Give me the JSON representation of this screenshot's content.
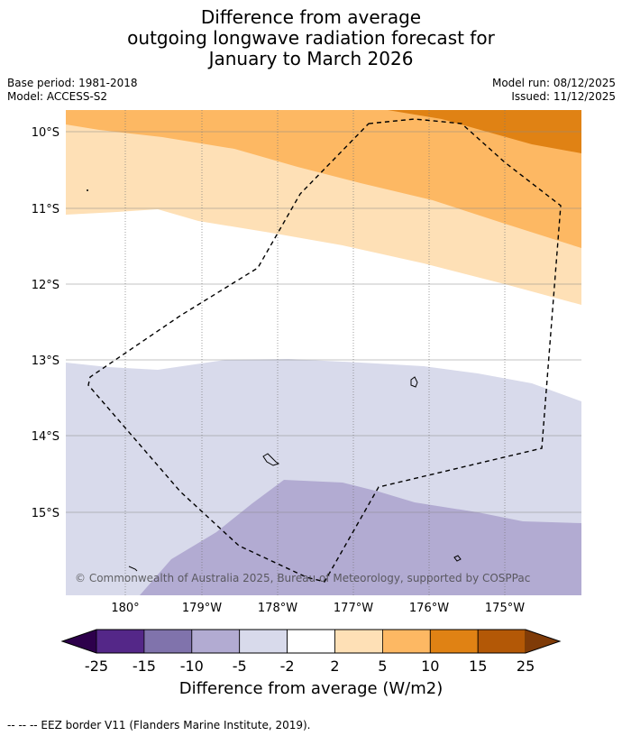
{
  "title": {
    "line1": "Difference from average",
    "line2": "outgoing longwave radiation forecast for",
    "line3": "January to March 2026"
  },
  "meta": {
    "base_period": "Base period: 1981-2018",
    "model": "Model: ACCESS-S2",
    "model_run": "Model run: 08/12/2025",
    "issued": "Issued: 11/12/2025"
  },
  "map": {
    "lat_labels": [
      "10°S",
      "11°S",
      "12°S",
      "13°S",
      "14°S",
      "15°S"
    ],
    "lon_labels": [
      "180°",
      "179°W",
      "178°W",
      "177°W",
      "176°W",
      "175°W"
    ],
    "copyright": "© Commonwealth of Australia 2025, Bureau of Meteorology, supported by COSPPac",
    "colors": {
      "orange_dark": "#e08214",
      "orange": "#fdb863",
      "orange_light": "#fee0b6",
      "purple_light": "#d8daeb",
      "purple": "#b2abd2"
    }
  },
  "colorbar": {
    "ticks": [
      "-25",
      "-15",
      "-10",
      "-5",
      "-2",
      "2",
      "5",
      "10",
      "15",
      "25"
    ],
    "colors": [
      "#2d004b",
      "#542788",
      "#8073ac",
      "#b2abd2",
      "#d8daeb",
      "#ffffff",
      "#fee0b6",
      "#fdb863",
      "#e08214",
      "#b35806",
      "#7f3b08"
    ],
    "label": "Difference from average (W/m2)"
  },
  "footer": "--  --  -- EEZ border V11 (Flanders Marine Institute, 2019)."
}
